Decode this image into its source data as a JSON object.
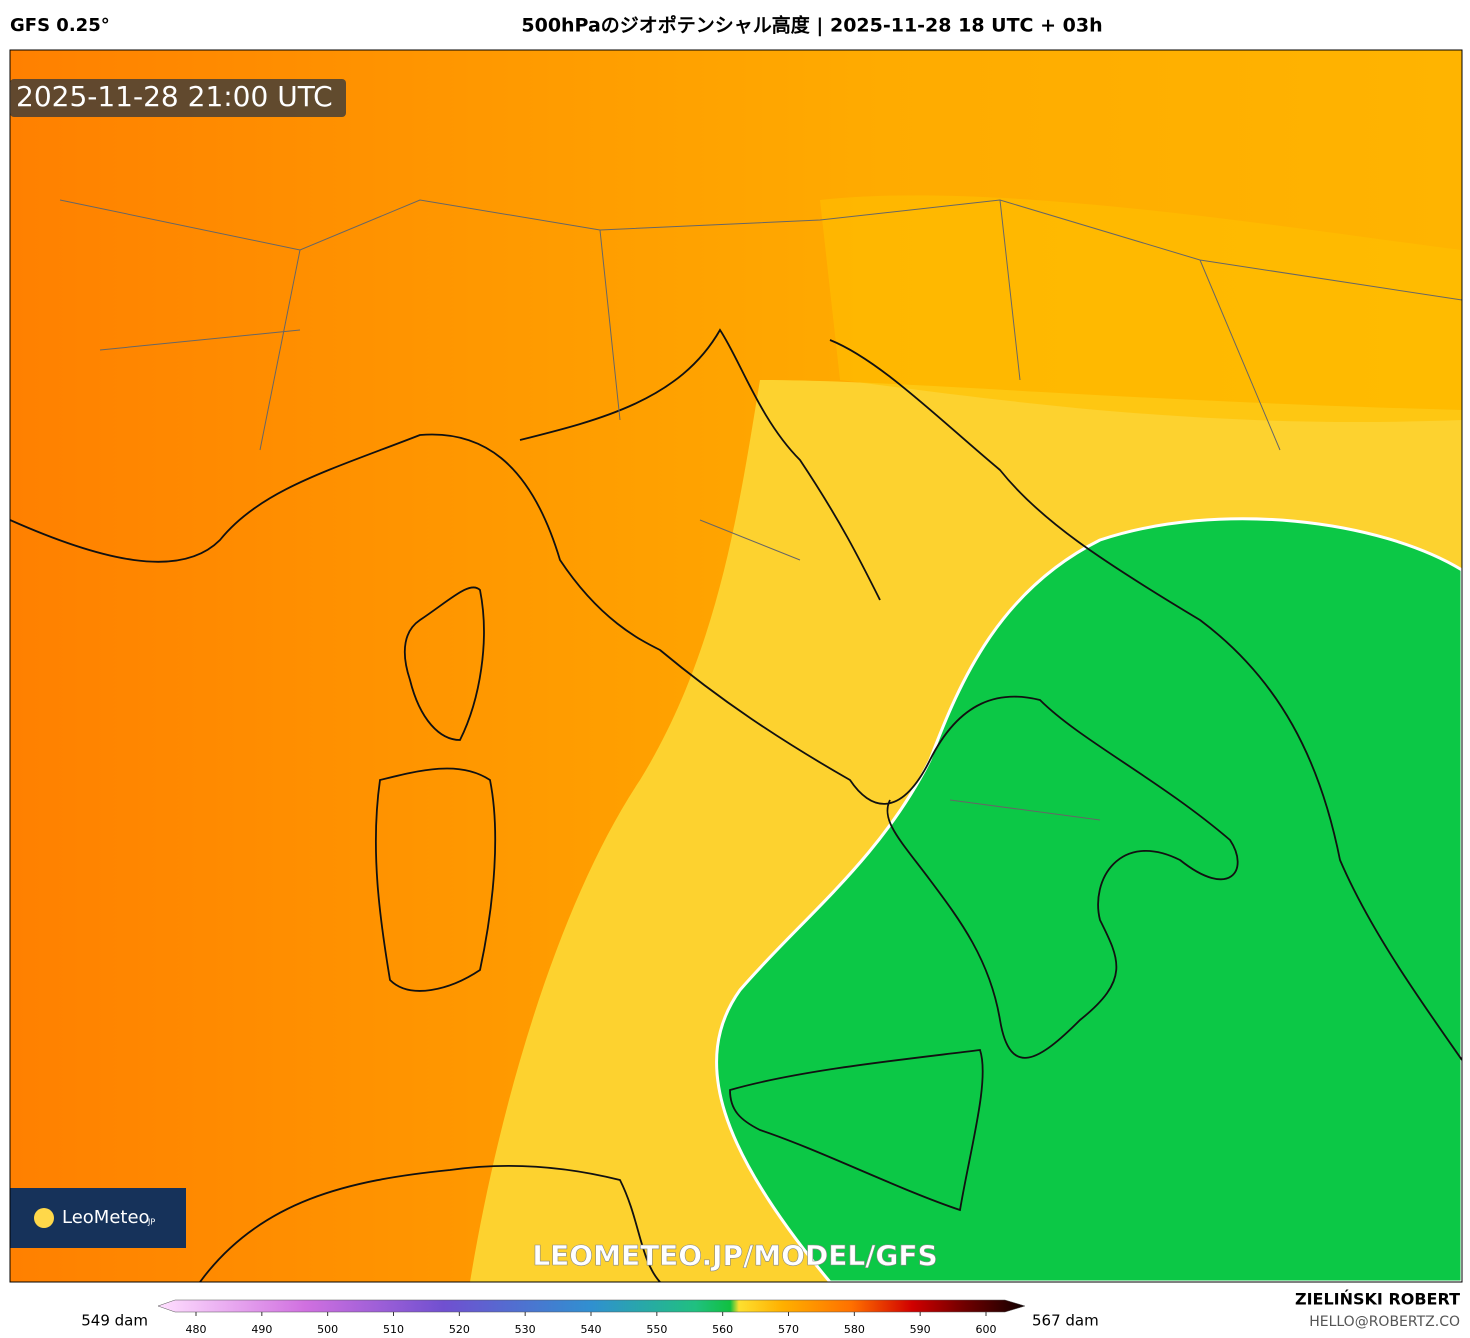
{
  "header": {
    "model": "GFS 0.25°",
    "title": "500hPaのジオポテンシャル高度 | 2025-11-28 18 UTC + 03h"
  },
  "map": {
    "timestamp": "2025-11-28 21:00 UTC",
    "logo": "LeoMeteo",
    "logo_suffix": "JP",
    "watermark": "LEOMETEO.JP/MODEL/GFS"
  },
  "colorbar": {
    "min_label": "549 dam",
    "max_label": "567 dam",
    "ticks": [
      480,
      490,
      500,
      510,
      520,
      530,
      540,
      550,
      560,
      570,
      580,
      590,
      600
    ]
  },
  "footer": {
    "author": "ZIELIŃSKI ROBERT",
    "email": "HELLO@ROBERTZ.CO"
  }
}
